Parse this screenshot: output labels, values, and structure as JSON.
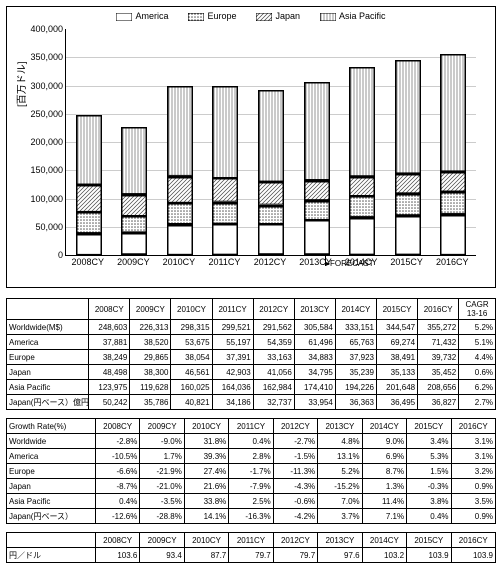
{
  "chart": {
    "type": "stacked-bar",
    "ylabel": "[百万ドル]",
    "ymax": 400000,
    "ytick_step": 50000,
    "categories": [
      "2008CY",
      "2009CY",
      "2010CY",
      "2011CY",
      "2012CY",
      "2013CY",
      "2014CY",
      "2015CY",
      "2016CY"
    ],
    "series": [
      "America",
      "Europe",
      "Japan",
      "Asia Pacific"
    ],
    "data": {
      "America": [
        37881,
        38520,
        53675,
        55197,
        54359,
        61496,
        65763,
        69274,
        71432
      ],
      "Europe": [
        38249,
        29865,
        38054,
        37391,
        33163,
        34883,
        37923,
        38491,
        39732
      ],
      "Japan": [
        48498,
        38300,
        46561,
        42903,
        41056,
        34795,
        35239,
        35133,
        35452
      ],
      "Asia Pacific": [
        123975,
        119628,
        160025,
        164036,
        162984,
        174410,
        194226,
        201648,
        208656
      ]
    },
    "fills": {
      "America": "#ffffff",
      "Europe": "pattern-dense-dot",
      "Japan": "pattern-diag",
      "Asia Pacific": "pattern-vert"
    },
    "forecast_from_index": 6,
    "forecast_label": "FORECAST"
  },
  "tables": {
    "years": [
      "2008CY",
      "2009CY",
      "2010CY",
      "2011CY",
      "2012CY",
      "2013CY",
      "2014CY",
      "2015CY",
      "2016CY"
    ],
    "cagr_label": "CAGR\n13-16",
    "t1": {
      "rows": [
        {
          "label": "Worldwide(M$)",
          "v": [
            "248,603",
            "226,313",
            "298,315",
            "299,521",
            "291,562",
            "305,584",
            "333,151",
            "344,547",
            "355,272"
          ],
          "cagr": "5.2%"
        },
        {
          "label": "America",
          "v": [
            "37,881",
            "38,520",
            "53,675",
            "55,197",
            "54,359",
            "61,496",
            "65,763",
            "69,274",
            "71,432"
          ],
          "cagr": "5.1%"
        },
        {
          "label": "Europe",
          "v": [
            "38,249",
            "29,865",
            "38,054",
            "37,391",
            "33,163",
            "34,883",
            "37,923",
            "38,491",
            "39,732"
          ],
          "cagr": "4.4%"
        },
        {
          "label": "Japan",
          "v": [
            "48,498",
            "38,300",
            "46,561",
            "42,903",
            "41,056",
            "34,795",
            "35,239",
            "35,133",
            "35,452"
          ],
          "cagr": "0.6%"
        },
        {
          "label": "Asia Pacific",
          "v": [
            "123,975",
            "119,628",
            "160,025",
            "164,036",
            "162,984",
            "174,410",
            "194,226",
            "201,648",
            "208,656"
          ],
          "cagr": "6.2%"
        },
        {
          "label": "Japan(円ベース）億円",
          "v": [
            "50,242",
            "35,786",
            "40,821",
            "34,186",
            "32,737",
            "33,954",
            "36,363",
            "36,495",
            "36,827"
          ],
          "cagr": "2.7%"
        }
      ]
    },
    "t2": {
      "title": "Growth Rate(%)",
      "rows": [
        {
          "label": "Worldwide",
          "v": [
            "-2.8%",
            "-9.0%",
            "31.8%",
            "0.4%",
            "-2.7%",
            "4.8%",
            "9.0%",
            "3.4%",
            "3.1%"
          ]
        },
        {
          "label": "America",
          "v": [
            "-10.5%",
            "1.7%",
            "39.3%",
            "2.8%",
            "-1.5%",
            "13.1%",
            "6.9%",
            "5.3%",
            "3.1%"
          ]
        },
        {
          "label": "Europe",
          "v": [
            "-6.6%",
            "-21.9%",
            "27.4%",
            "-1.7%",
            "-11.3%",
            "5.2%",
            "8.7%",
            "1.5%",
            "3.2%"
          ]
        },
        {
          "label": "Japan",
          "v": [
            "-8.7%",
            "-21.0%",
            "21.6%",
            "-7.9%",
            "-4.3%",
            "-15.2%",
            "1.3%",
            "-0.3%",
            "0.9%"
          ]
        },
        {
          "label": "Asia Pacific",
          "v": [
            "0.4%",
            "-3.5%",
            "33.8%",
            "2.5%",
            "-0.6%",
            "7.0%",
            "11.4%",
            "3.8%",
            "3.5%"
          ]
        },
        {
          "label": "Japan(円ベース）",
          "v": [
            "-12.6%",
            "-28.8%",
            "14.1%",
            "-16.3%",
            "-4.2%",
            "3.7%",
            "7.1%",
            "0.4%",
            "0.9%"
          ]
        }
      ]
    },
    "t3": {
      "rows": [
        {
          "label": "円／ドル",
          "v": [
            "103.6",
            "93.4",
            "87.7",
            "79.7",
            "79.7",
            "97.6",
            "103.2",
            "103.9",
            "103.9"
          ]
        }
      ]
    }
  }
}
